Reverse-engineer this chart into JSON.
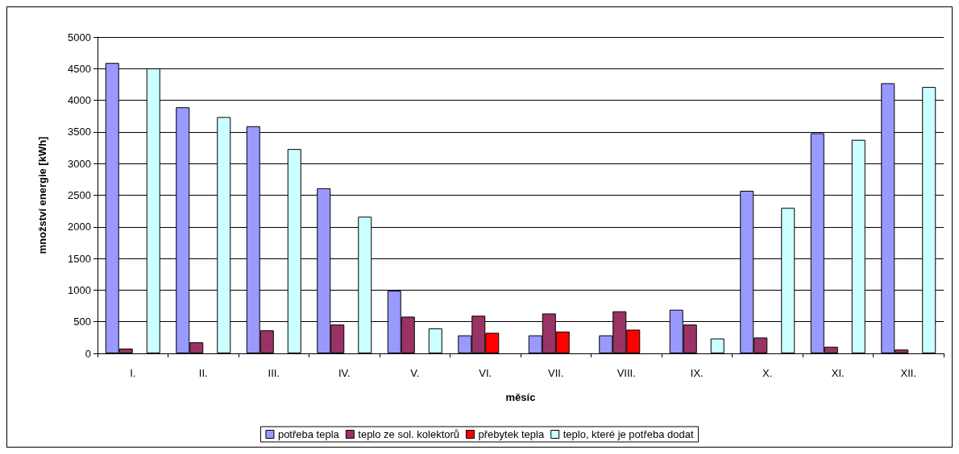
{
  "chart_data": {
    "type": "bar",
    "xlabel": "měsíc",
    "ylabel": "množství energie [kWh]",
    "categories": [
      "I.",
      "II.",
      "III.",
      "IV.",
      "V.",
      "VI.",
      "VII.",
      "VIII.",
      "IX.",
      "X.",
      "XI.",
      "XII."
    ],
    "series": [
      {
        "name": "potřeba tepla",
        "color": "#9999ff",
        "values": [
          4590,
          3890,
          3590,
          2610,
          990,
          285,
          285,
          285,
          690,
          2570,
          3480,
          4270
        ]
      },
      {
        "name": "teplo ze sol. kolektorů",
        "color": "#993366",
        "values": [
          75,
          175,
          365,
          455,
          580,
          595,
          630,
          665,
          455,
          250,
          105,
          60
        ]
      },
      {
        "name": "přebytek tepla",
        "color": "#ff0000",
        "values": [
          null,
          null,
          null,
          null,
          null,
          325,
          345,
          375,
          null,
          null,
          null,
          null
        ]
      },
      {
        "name": "teplo, které je potřeba dodat",
        "color": "#ccffff",
        "values": [
          4505,
          3735,
          3230,
          2160,
          395,
          null,
          null,
          null,
          235,
          2300,
          3375,
          4210
        ]
      }
    ],
    "ylim": [
      0,
      5000
    ],
    "yticks": [
      0,
      500,
      1000,
      1500,
      2000,
      2500,
      3000,
      3500,
      4000,
      4500,
      5000
    ],
    "grid": "y",
    "legend": "bottom"
  }
}
